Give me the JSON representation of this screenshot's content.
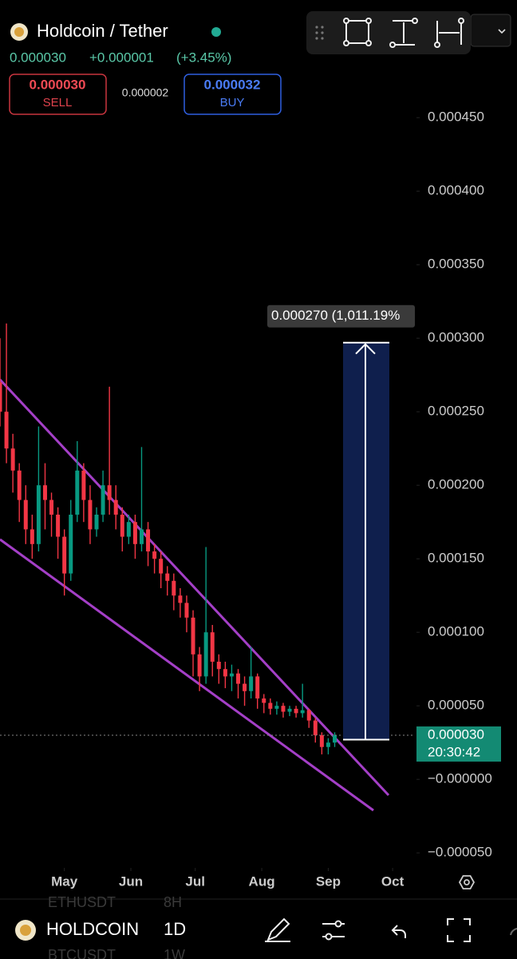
{
  "header": {
    "symbol": "Holdcoin / Tether",
    "price": "0.000030",
    "change": "+0.000001",
    "change_pct": "(+3.45%)"
  },
  "order": {
    "sell_price": "0.000030",
    "sell_label": "SELL",
    "spread": "0.000002",
    "buy_price": "0.000032",
    "buy_label": "BUY"
  },
  "chart_data": {
    "type": "candlestick",
    "up_color": "#089981",
    "down_color": "#f23645",
    "x": [
      0,
      3,
      6,
      9,
      12,
      15,
      18,
      21,
      24,
      27,
      30,
      33,
      36,
      39,
      42,
      45,
      48,
      51,
      54,
      57,
      60,
      63,
      66,
      69,
      72,
      75,
      78,
      81,
      84,
      87,
      90,
      93,
      96,
      99,
      102,
      105,
      108,
      111,
      114,
      117,
      120,
      123,
      126,
      129,
      132,
      135,
      138,
      141,
      144,
      147,
      150,
      153,
      156
    ],
    "open": [
      0.00027,
      0.00025,
      0.000225,
      0.00021,
      0.00019,
      0.00017,
      0.00016,
      0.0002,
      0.00019,
      0.00018,
      0.000165,
      0.00014,
      0.00018,
      0.00021,
      0.00019,
      0.00017,
      0.00018,
      0.0002,
      0.00019,
      0.00018,
      0.000165,
      0.000175,
      0.00016,
      0.00017,
      0.000155,
      0.00015,
      0.00014,
      0.000135,
      0.000125,
      0.00012,
      0.00011,
      8.5e-05,
      7e-05,
      0.0001,
      8e-05,
      7.5e-05,
      7e-05,
      7.2e-05,
      6.5e-05,
      6e-05,
      7e-05,
      5.5e-05,
      5.2e-05,
      4.8e-05,
      5e-05,
      4.6e-05,
      4.8e-05,
      4.5e-05,
      4.7e-05,
      4e-05,
      3e-05,
      2.2e-05,
      2.5e-05
    ],
    "high": [
      0.0003,
      0.00031,
      0.000235,
      0.000215,
      0.0002,
      0.00018,
      0.00024,
      0.000215,
      0.000195,
      0.000185,
      0.00017,
      0.00019,
      0.00023,
      0.000215,
      0.0002,
      0.000185,
      0.00021,
      0.000267,
      0.0002,
      0.000185,
      0.00018,
      0.00018,
      0.000226,
      0.000175,
      0.00016,
      0.000155,
      0.000145,
      0.00014,
      0.00013,
      0.000125,
      0.000115,
      9e-05,
      0.000158,
      0.000105,
      8.5e-05,
      8e-05,
      7.8e-05,
      7.5e-05,
      7e-05,
      9e-05,
      7.2e-05,
      5.8e-05,
      5.5e-05,
      5.3e-05,
      5.2e-05,
      5e-05,
      5e-05,
      6.5e-05,
      4.8e-05,
      4.2e-05,
      3.2e-05,
      2.8e-05,
      3.2e-05
    ],
    "low": [
      0.00024,
      0.000215,
      0.000195,
      0.000175,
      0.00016,
      0.00015,
      0.000155,
      0.00017,
      0.000165,
      0.00015,
      0.000125,
      0.000135,
      0.000175,
      0.000175,
      0.00016,
      0.000165,
      0.000175,
      0.00018,
      0.00017,
      0.000155,
      0.00016,
      0.00015,
      0.000155,
      0.000145,
      0.00014,
      0.00013,
      0.000125,
      0.000115,
      0.00011,
      0.0001,
      7e-05,
      6e-05,
      6.5e-05,
      7e-05,
      6.5e-05,
      6.2e-05,
      6e-05,
      5.5e-05,
      5e-05,
      5.5e-05,
      4.8e-05,
      4.5e-05,
      4.4e-05,
      4.4e-05,
      4.2e-05,
      4.3e-05,
      4.2e-05,
      4.2e-05,
      3.5e-05,
      2.5e-05,
      1.7e-05,
      1.7e-05,
      2.2e-05
    ],
    "close": [
      0.00025,
      0.000225,
      0.00021,
      0.00019,
      0.00017,
      0.00016,
      0.0002,
      0.00019,
      0.00018,
      0.000165,
      0.00014,
      0.00018,
      0.00021,
      0.00019,
      0.00017,
      0.00018,
      0.0002,
      0.00019,
      0.00018,
      0.000165,
      0.000175,
      0.00016,
      0.00017,
      0.000155,
      0.00015,
      0.00014,
      0.000135,
      0.000125,
      0.00012,
      0.00011,
      8.5e-05,
      7e-05,
      0.0001,
      8e-05,
      7.5e-05,
      7e-05,
      7.2e-05,
      6.5e-05,
      6e-05,
      7e-05,
      5.5e-05,
      5.2e-05,
      4.8e-05,
      5e-05,
      4.6e-05,
      4.8e-05,
      4.5e-05,
      4.7e-05,
      4e-05,
      3e-05,
      2.2e-05,
      2.5e-05,
      3e-05
    ],
    "xlim": [
      0,
      193
    ],
    "xticks": [
      {
        "value": 30,
        "label": "May"
      },
      {
        "value": 61,
        "label": "Jun"
      },
      {
        "value": 91,
        "label": "Jul"
      },
      {
        "value": 122,
        "label": "Aug"
      },
      {
        "value": 153,
        "label": "Sep"
      },
      {
        "value": 183,
        "label": "Oct"
      }
    ],
    "ylim": [
      -6e-05,
      0.00053
    ],
    "yticks": [
      {
        "value": 0.00045,
        "label": "0.000450"
      },
      {
        "value": 0.0004,
        "label": "0.000400"
      },
      {
        "value": 0.00035,
        "label": "0.000350"
      },
      {
        "value": 0.0003,
        "label": "0.000300"
      },
      {
        "value": 0.00025,
        "label": "0.000250"
      },
      {
        "value": 0.0002,
        "label": "0.000200"
      },
      {
        "value": 0.00015,
        "label": "0.000150"
      },
      {
        "value": 0.0001,
        "label": "0.000100"
      },
      {
        "value": 5e-05,
        "label": "0.000050"
      },
      {
        "value": 0,
        "label": "−0.000000"
      },
      {
        "value": -5e-05,
        "label": "−0.000050"
      }
    ],
    "measure": {
      "from": 2.7e-05,
      "to": 0.000297,
      "label": "0.000270 (1,011.19%"
    },
    "price_tag": {
      "value": 3e-05,
      "label": "0.000030",
      "timer": "20:30:42"
    }
  },
  "bottom_bar": {
    "symbol": "HOLDCOIN",
    "interval": "1D",
    "ghost_rows": [
      "ETHUSDT",
      "8H",
      "BTCUSDT",
      "1W"
    ]
  }
}
